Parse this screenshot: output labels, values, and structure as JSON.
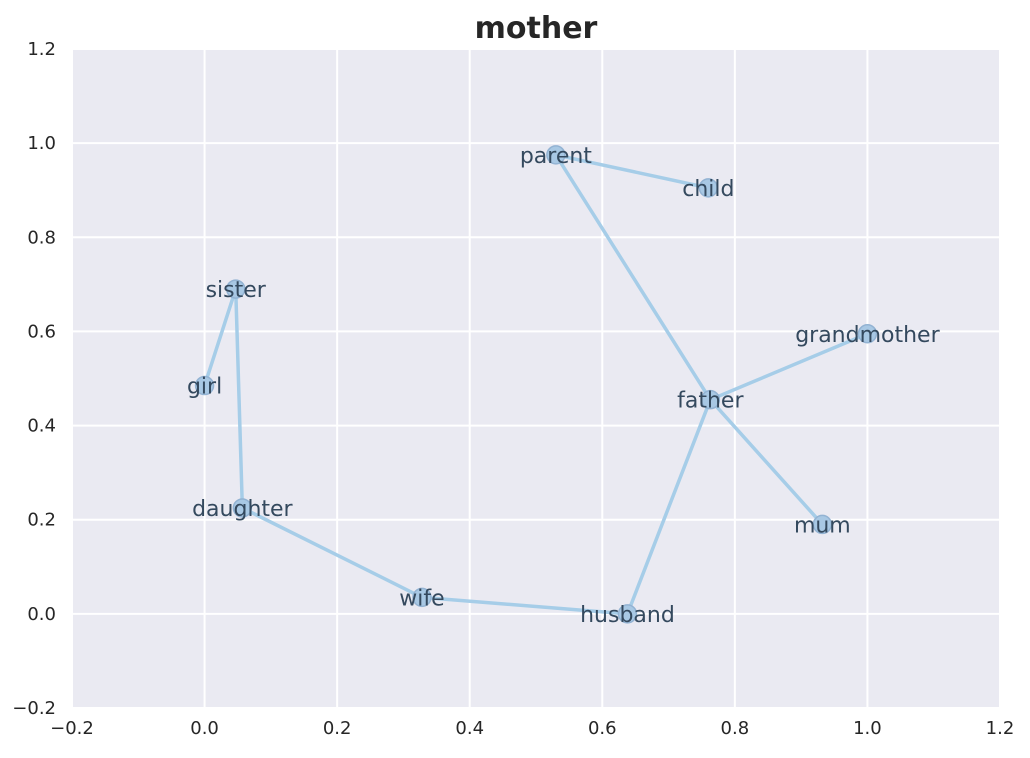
{
  "chart_data": {
    "type": "scatter",
    "title": "mother",
    "xlabel": "",
    "ylabel": "",
    "xlim": [
      -0.2,
      1.2
    ],
    "ylim": [
      -0.2,
      1.2
    ],
    "xticks": [
      "−0.2",
      "0.0",
      "0.2",
      "0.4",
      "0.6",
      "0.8",
      "1.0",
      "1.2"
    ],
    "yticks": [
      "−0.2",
      "0.0",
      "0.2",
      "0.4",
      "0.6",
      "0.8",
      "1.0",
      "1.2"
    ],
    "xtick_values": [
      -0.2,
      0.0,
      0.2,
      0.4,
      0.6,
      0.8,
      1.0,
      1.2
    ],
    "ytick_values": [
      -0.2,
      0.0,
      0.2,
      0.4,
      0.6,
      0.8,
      1.0,
      1.2
    ],
    "grid": true,
    "points": [
      {
        "label": "parent",
        "x": 0.53,
        "y": 0.975
      },
      {
        "label": "child",
        "x": 0.76,
        "y": 0.905
      },
      {
        "label": "sister",
        "x": 0.047,
        "y": 0.69
      },
      {
        "label": "girl",
        "x": 0.0,
        "y": 0.485
      },
      {
        "label": "grandmother",
        "x": 1.0,
        "y": 0.595
      },
      {
        "label": "father",
        "x": 0.763,
        "y": 0.455
      },
      {
        "label": "daughter",
        "x": 0.057,
        "y": 0.225
      },
      {
        "label": "mum",
        "x": 0.932,
        "y": 0.19
      },
      {
        "label": "wife",
        "x": 0.328,
        "y": 0.035
      },
      {
        "label": "husband",
        "x": 0.638,
        "y": 0.0
      }
    ],
    "edges": [
      [
        "parent",
        "child"
      ],
      [
        "parent",
        "father"
      ],
      [
        "father",
        "grandmother"
      ],
      [
        "father",
        "mum"
      ],
      [
        "father",
        "husband"
      ],
      [
        "husband",
        "wife"
      ],
      [
        "wife",
        "daughter"
      ],
      [
        "daughter",
        "sister"
      ],
      [
        "sister",
        "girl"
      ]
    ],
    "colors": {
      "background": "#eaeaf2",
      "grid": "#ffffff",
      "line": "#a6cde8",
      "marker_fill": "#a8c8e4",
      "marker_edge": "#93b3d3",
      "label": "#34495e"
    }
  }
}
